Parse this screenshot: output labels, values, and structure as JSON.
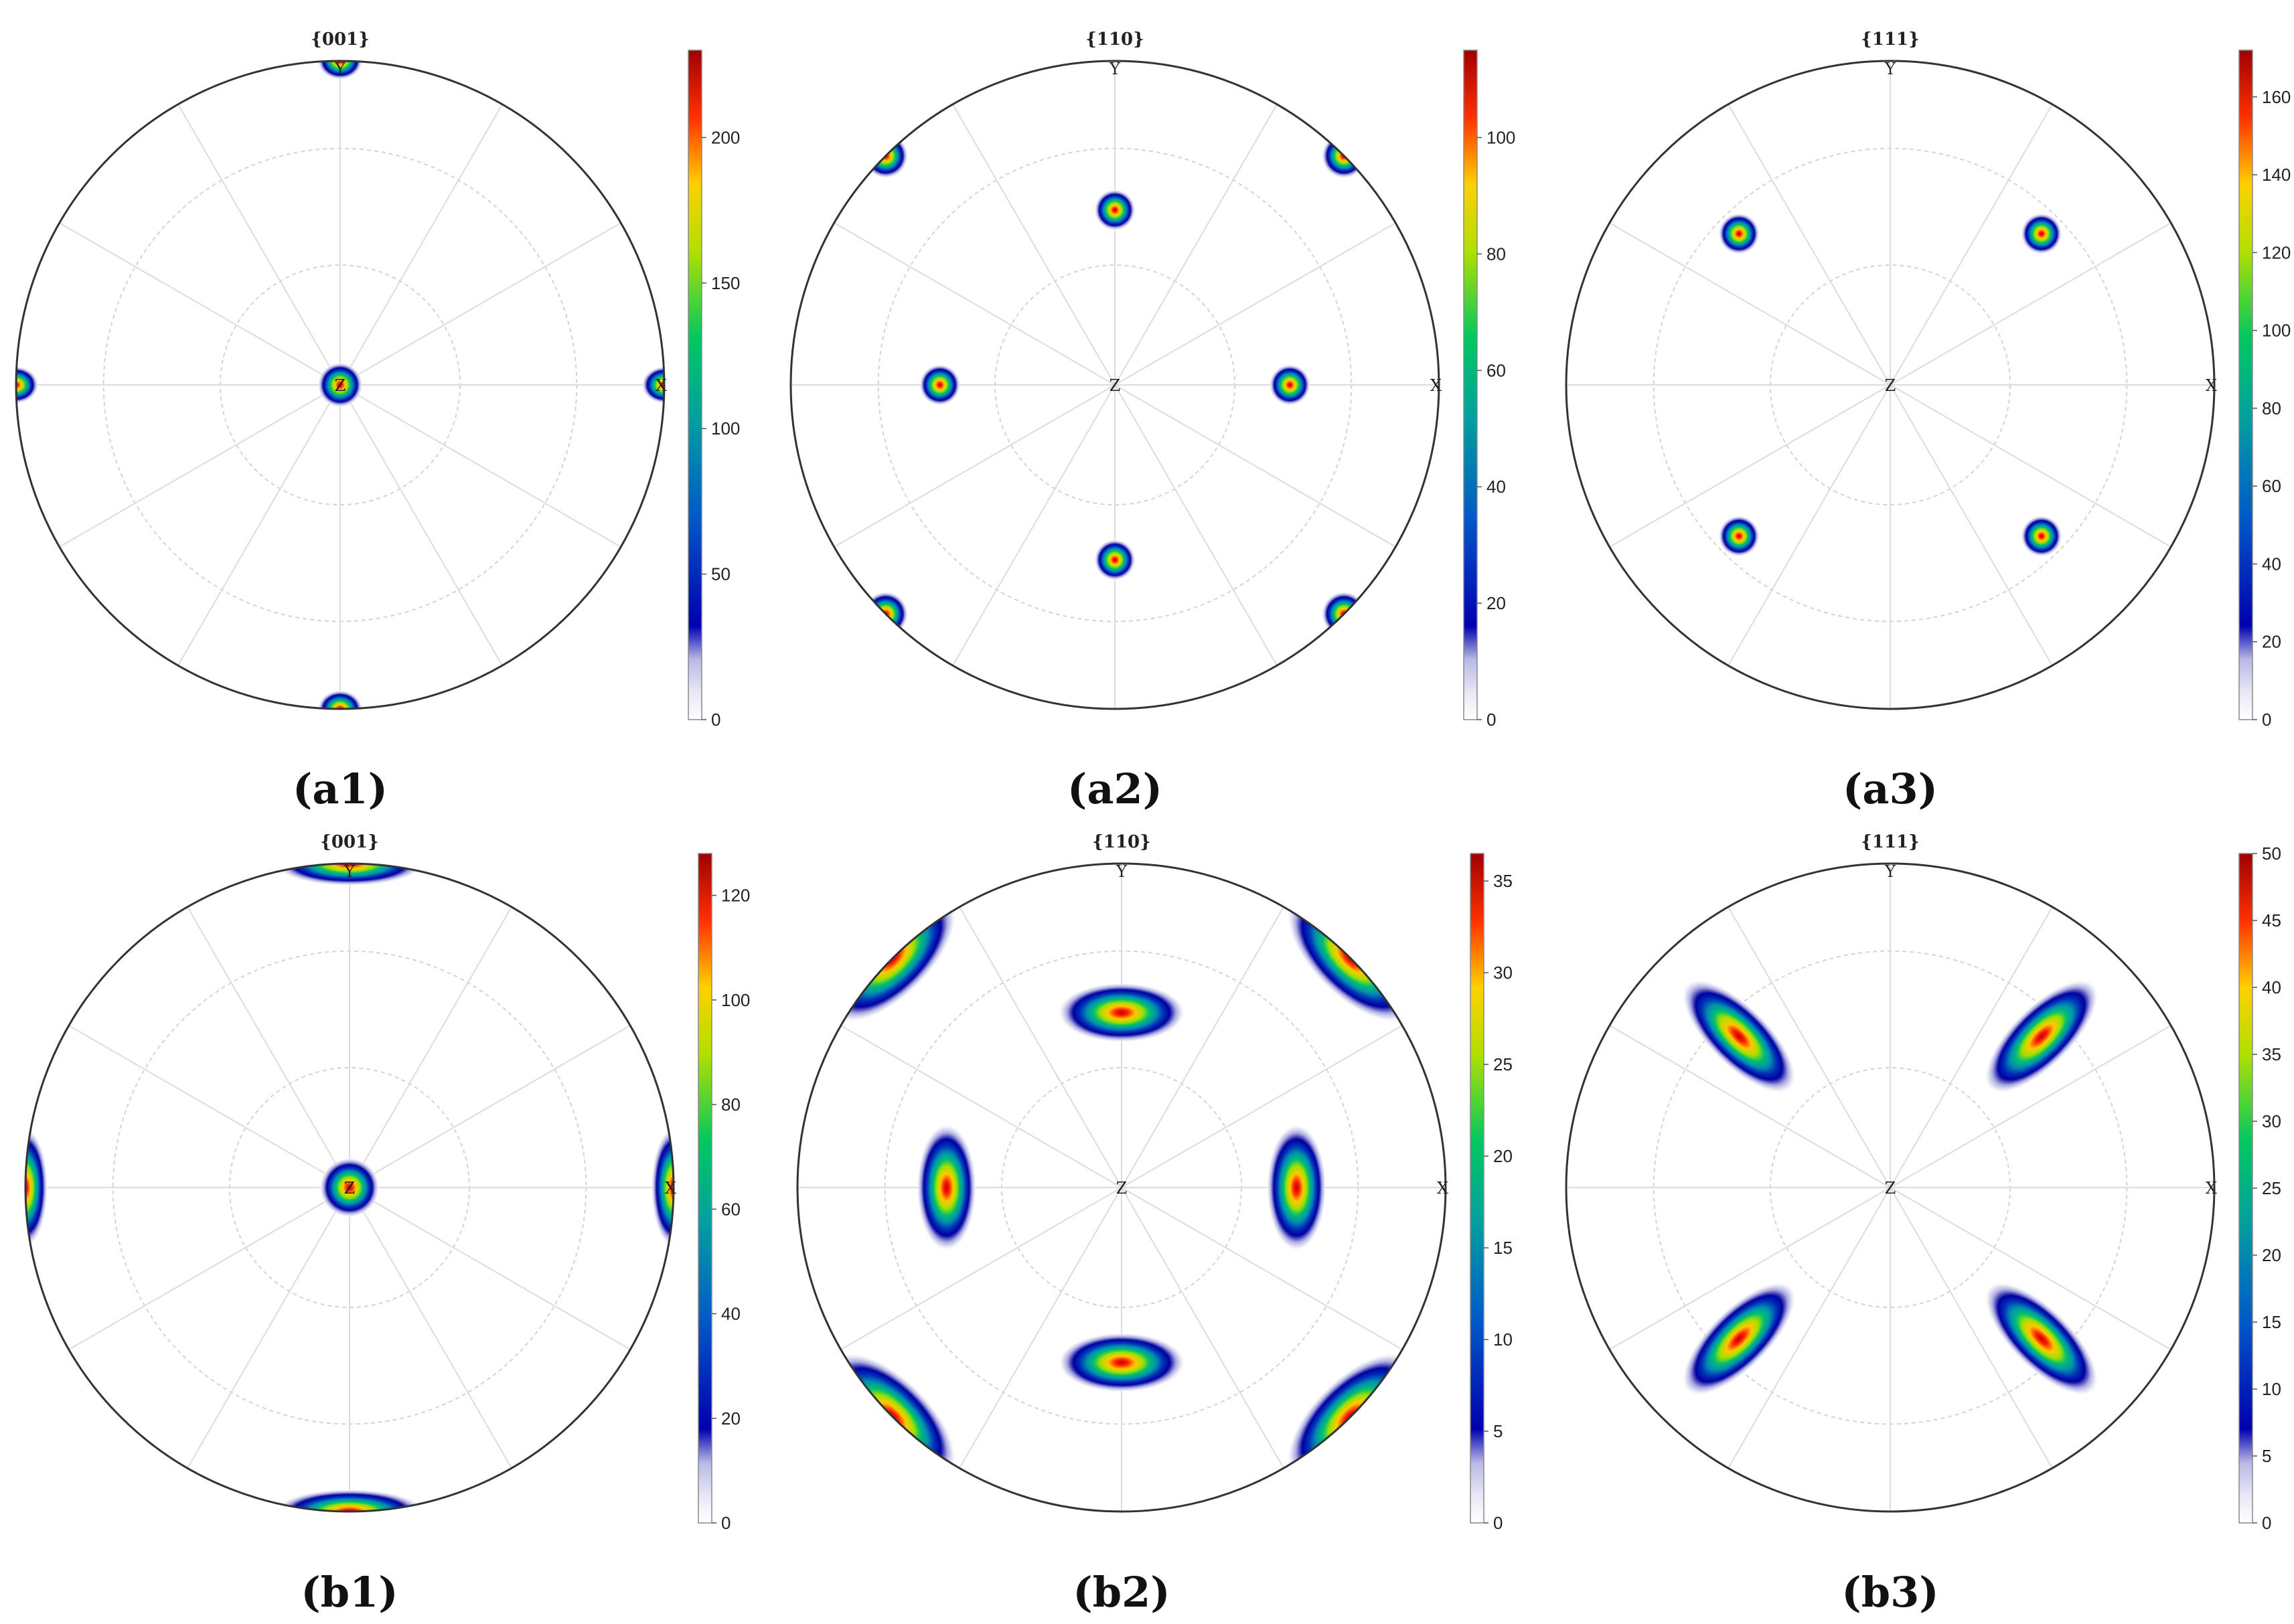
{
  "panels": [
    {
      "id": "a1",
      "caption": "(a1)",
      "title": "{001}",
      "axes": {
        "top": "Y",
        "right": "X",
        "center": "Z"
      },
      "colorbar": {
        "max": 230,
        "ticks": [
          0,
          50,
          100,
          150,
          200
        ]
      },
      "poles": [
        {
          "r": 0,
          "az": 0,
          "sx": 0.06,
          "sy": 0.06
        },
        {
          "r": 1,
          "az": 0,
          "sx": 0.06,
          "sy": 0.05,
          "clip": true
        },
        {
          "r": 1,
          "az": 90,
          "sx": 0.06,
          "sy": 0.05,
          "clip": true
        },
        {
          "r": 1,
          "az": 180,
          "sx": 0.06,
          "sy": 0.05,
          "clip": true
        },
        {
          "r": 1,
          "az": 270,
          "sx": 0.06,
          "sy": 0.05,
          "clip": true
        }
      ]
    },
    {
      "id": "a2",
      "caption": "(a2)",
      "title": "{110}",
      "axes": {
        "top": "Y",
        "right": "X",
        "center": "Z"
      },
      "colorbar": {
        "max": 115,
        "ticks": [
          0,
          20,
          40,
          60,
          80,
          100
        ]
      },
      "poles": [
        {
          "r": 0.54,
          "az": 0,
          "sx": 0.055,
          "sy": 0.055
        },
        {
          "r": 0.54,
          "az": 90,
          "sx": 0.055,
          "sy": 0.055
        },
        {
          "r": 0.54,
          "az": 180,
          "sx": 0.055,
          "sy": 0.055
        },
        {
          "r": 0.54,
          "az": 270,
          "sx": 0.055,
          "sy": 0.055
        },
        {
          "r": 1,
          "az": 45,
          "sx": 0.06,
          "sy": 0.06,
          "clip": true
        },
        {
          "r": 1,
          "az": 135,
          "sx": 0.06,
          "sy": 0.06,
          "clip": true
        },
        {
          "r": 1,
          "az": 225,
          "sx": 0.06,
          "sy": 0.06,
          "clip": true
        },
        {
          "r": 1,
          "az": 315,
          "sx": 0.06,
          "sy": 0.06,
          "clip": true
        }
      ]
    },
    {
      "id": "a3",
      "caption": "(a3)",
      "title": "{111}",
      "axes": {
        "top": "Y",
        "right": "X",
        "center": "Z"
      },
      "colorbar": {
        "max": 172,
        "ticks": [
          0,
          20,
          40,
          60,
          80,
          100,
          120,
          140,
          160
        ]
      },
      "poles": [
        {
          "r": 0.66,
          "az": 45,
          "sx": 0.055,
          "sy": 0.055
        },
        {
          "r": 0.66,
          "az": 135,
          "sx": 0.055,
          "sy": 0.055
        },
        {
          "r": 0.66,
          "az": 225,
          "sx": 0.055,
          "sy": 0.055
        },
        {
          "r": 0.66,
          "az": 315,
          "sx": 0.055,
          "sy": 0.055
        }
      ]
    },
    {
      "id": "b1",
      "caption": "(b1)",
      "title": "{001}",
      "axes": {
        "top": "Y",
        "right": "X",
        "center": "Z"
      },
      "colorbar": {
        "max": 128,
        "ticks": [
          0,
          20,
          40,
          60,
          80,
          100,
          120
        ]
      },
      "poles": [
        {
          "r": 0,
          "az": 0,
          "sx": 0.08,
          "sy": 0.08
        },
        {
          "r": 1,
          "az": 0,
          "sx": 0.06,
          "sy": 0.16,
          "clip": true
        },
        {
          "r": 1,
          "az": 90,
          "sx": 0.2,
          "sy": 0.06,
          "clip": true
        },
        {
          "r": 1,
          "az": 180,
          "sx": 0.06,
          "sy": 0.16,
          "clip": true
        },
        {
          "r": 1,
          "az": 270,
          "sx": 0.2,
          "sy": 0.06,
          "clip": true
        }
      ]
    },
    {
      "id": "b2",
      "caption": "(b2)",
      "title": "{110}",
      "axes": {
        "top": "Y",
        "right": "X",
        "center": "Z"
      },
      "colorbar": {
        "max": 36.5,
        "ticks": [
          0,
          5,
          10,
          15,
          20,
          25,
          30,
          35
        ]
      },
      "poles": [
        {
          "r": 0.54,
          "az": 0,
          "sx": 0.08,
          "sy": 0.17
        },
        {
          "r": 0.54,
          "az": 90,
          "sx": 0.17,
          "sy": 0.08
        },
        {
          "r": 0.54,
          "az": 180,
          "sx": 0.08,
          "sy": 0.17
        },
        {
          "r": 0.54,
          "az": 270,
          "sx": 0.17,
          "sy": 0.08
        },
        {
          "r": 1,
          "az": 45,
          "sx": 0.1,
          "sy": 0.22,
          "rot": -45,
          "clip": true
        },
        {
          "r": 1,
          "az": 135,
          "sx": 0.1,
          "sy": 0.22,
          "rot": 45,
          "clip": true
        },
        {
          "r": 1,
          "az": 225,
          "sx": 0.1,
          "sy": 0.22,
          "rot": -45,
          "clip": true
        },
        {
          "r": 1,
          "az": 315,
          "sx": 0.1,
          "sy": 0.22,
          "rot": 45,
          "clip": true
        }
      ]
    },
    {
      "id": "b3",
      "caption": "(b3)",
      "title": "{111}",
      "axes": {
        "top": "Y",
        "right": "X",
        "center": "Z"
      },
      "colorbar": {
        "max": 50,
        "ticks": [
          0,
          5,
          10,
          15,
          20,
          25,
          30,
          35,
          40,
          45,
          50
        ]
      },
      "poles": [
        {
          "r": 0.66,
          "az": 45,
          "sx": 0.08,
          "sy": 0.2,
          "rot": 45
        },
        {
          "r": 0.66,
          "az": 135,
          "sx": 0.08,
          "sy": 0.2,
          "rot": -45
        },
        {
          "r": 0.66,
          "az": 225,
          "sx": 0.08,
          "sy": 0.2,
          "rot": 45
        },
        {
          "r": 0.66,
          "az": 315,
          "sx": 0.08,
          "sy": 0.2,
          "rot": -45
        }
      ]
    }
  ]
}
